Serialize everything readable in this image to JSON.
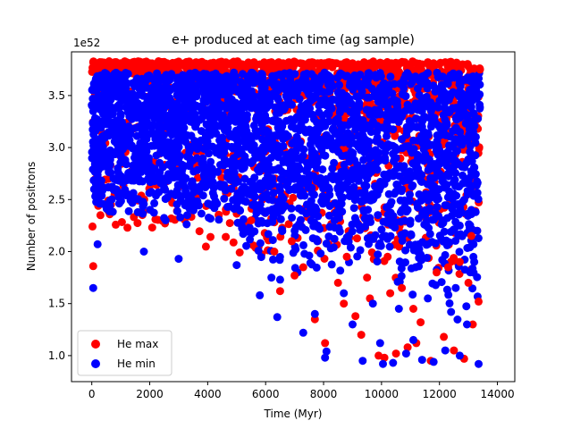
{
  "chart_data": {
    "type": "scatter",
    "title": "e+ produced at each time (ag sample)",
    "xlabel": "Time (Myr)",
    "ylabel": "Number of positrons",
    "y_offset_text": "1e52",
    "xlim": [
      -700,
      14600
    ],
    "ylim": [
      0.75,
      3.92
    ],
    "xticks": [
      0,
      2000,
      4000,
      6000,
      8000,
      10000,
      12000,
      14000
    ],
    "yticks": [
      1.0,
      1.5,
      2.0,
      2.5,
      3.0,
      3.5
    ],
    "ytick_labels": [
      "1.0",
      "1.5",
      "2.0",
      "2.5",
      "3.0",
      "3.5"
    ],
    "grid": false,
    "legend_position": "bottom-left",
    "series": [
      {
        "name": "He max",
        "color": "#ff0000",
        "x": [
          50,
          100,
          200,
          350,
          500,
          600,
          800,
          1000,
          1200,
          1400,
          1600,
          1800,
          2000,
          2200,
          2400,
          2600,
          2800,
          3000,
          3200,
          3400,
          3600,
          3800,
          4000,
          4200,
          4400,
          4600,
          4800,
          5000,
          5200,
          5400,
          5600,
          5800,
          6000,
          6200,
          6400,
          6600,
          6800,
          7000,
          7200,
          7400,
          7600,
          7800,
          8000,
          8200,
          8400,
          8600,
          8800,
          9000,
          9200,
          9400,
          9600,
          9800,
          10000,
          10200,
          10400,
          10600,
          10800,
          11000,
          11200,
          11400,
          11600,
          11800,
          12000,
          12200,
          12400,
          12600,
          12800,
          13000,
          13200,
          13400,
          50,
          300,
          6500,
          7000,
          7700,
          8050,
          8700,
          9100,
          9300,
          9900,
          10100,
          10500,
          10900,
          11200,
          11350,
          11700,
          12150,
          12500,
          12850,
          13150,
          13350,
          6300,
          7300,
          8500,
          9600,
          10700,
          11900,
          12700,
          13100,
          5500,
          6900,
          8800,
          9500,
          10300,
          11100,
          12300,
          13000,
          13300
        ],
        "y": [
          3.82,
          3.8,
          3.81,
          3.82,
          3.8,
          3.83,
          3.82,
          3.81,
          3.82,
          3.8,
          3.81,
          3.82,
          3.81,
          3.8,
          3.82,
          3.81,
          3.8,
          3.82,
          3.81,
          3.8,
          3.82,
          3.81,
          3.8,
          3.81,
          3.82,
          3.8,
          3.81,
          3.82,
          3.8,
          3.81,
          3.82,
          3.8,
          3.81,
          3.82,
          3.8,
          3.81,
          3.82,
          3.8,
          3.81,
          3.8,
          3.82,
          3.81,
          3.8,
          3.82,
          3.81,
          3.8,
          3.82,
          3.81,
          3.8,
          3.82,
          3.81,
          3.8,
          3.81,
          3.82,
          3.8,
          3.81,
          3.82,
          3.8,
          3.81,
          3.8,
          3.82,
          3.81,
          3.8,
          3.82,
          3.81,
          3.79,
          3.8,
          3.78,
          3.76,
          3.75,
          1.86,
          2.35,
          1.62,
          1.77,
          1.35,
          1.12,
          1.5,
          1.38,
          1.2,
          1.0,
          0.98,
          1.02,
          1.08,
          1.12,
          1.32,
          0.95,
          1.18,
          1.05,
          0.97,
          1.3,
          1.52,
          2.0,
          1.85,
          1.7,
          1.55,
          1.65,
          1.8,
          1.9,
          2.15,
          2.3,
          2.1,
          1.95,
          1.75,
          1.6,
          1.45,
          1.85,
          1.7,
          2.2
        ]
      },
      {
        "name": "He min",
        "color": "#0000ff",
        "x": [
          50,
          150,
          300,
          450,
          650,
          900,
          1100,
          1300,
          1500,
          1700,
          1900,
          2100,
          2300,
          2500,
          2700,
          2900,
          3100,
          3300,
          3500,
          3700,
          3900,
          4100,
          4300,
          4500,
          4700,
          4900,
          5100,
          5300,
          5500,
          5700,
          5900,
          6100,
          6300,
          6500,
          6700,
          6900,
          7100,
          7300,
          7500,
          7700,
          7900,
          8100,
          8300,
          8500,
          8700,
          8900,
          9100,
          9300,
          9500,
          9700,
          9900,
          10100,
          10300,
          10500,
          10700,
          10900,
          11100,
          11300,
          11500,
          11700,
          11900,
          12100,
          12300,
          12500,
          12700,
          12900,
          13100,
          13300,
          50,
          200,
          1800,
          3000,
          5000,
          5800,
          6400,
          6500,
          7300,
          8100,
          8050,
          9000,
          9350,
          9950,
          10050,
          10400,
          10850,
          11100,
          11400,
          11800,
          12200,
          12700,
          12950,
          13350,
          6200,
          7700,
          8700,
          9700,
          10600,
          11600,
          12400,
          13200
        ],
        "y": [
          3.35,
          3.55,
          3.45,
          3.6,
          3.5,
          3.4,
          3.55,
          3.3,
          3.45,
          3.6,
          3.25,
          3.5,
          3.4,
          3.2,
          3.55,
          3.35,
          3.1,
          3.45,
          3.3,
          3.0,
          3.5,
          3.2,
          2.95,
          3.4,
          3.15,
          2.9,
          3.35,
          3.05,
          2.85,
          3.3,
          3.0,
          2.8,
          3.25,
          2.95,
          2.75,
          3.2,
          2.9,
          2.7,
          3.15,
          2.85,
          2.65,
          3.1,
          2.8,
          2.6,
          3.05,
          2.75,
          2.55,
          3.0,
          2.7,
          2.5,
          2.95,
          2.65,
          2.45,
          2.9,
          2.6,
          2.4,
          2.85,
          2.55,
          2.35,
          2.8,
          2.5,
          2.3,
          2.75,
          2.45,
          2.25,
          2.7,
          2.4,
          2.2,
          1.65,
          2.07,
          2.0,
          1.93,
          1.87,
          1.58,
          1.37,
          1.73,
          1.22,
          1.04,
          0.98,
          1.3,
          0.95,
          1.12,
          0.92,
          0.93,
          1.02,
          1.15,
          0.96,
          0.94,
          1.05,
          1.0,
          1.3,
          0.92,
          1.75,
          1.4,
          1.6,
          1.5,
          1.45,
          1.55,
          1.42,
          1.9
        ]
      }
    ]
  }
}
